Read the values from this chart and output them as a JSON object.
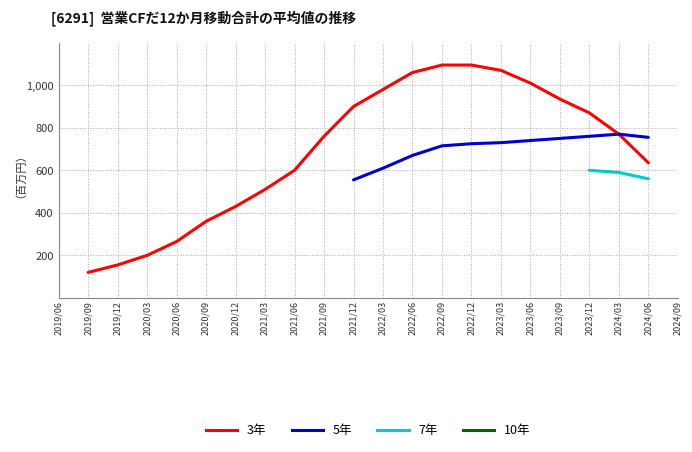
{
  "title": "[6291]  営業CFだ12か月移動合計の平均値の推移",
  "ylabel": "（百万円）",
  "background_color": "#ffffff",
  "plot_bg_color": "#ffffff",
  "grid_color": "#aaaaaa",
  "series": {
    "3年": {
      "color": "#ff0000",
      "dates": [
        "2019/09",
        "2019/12",
        "2020/03",
        "2020/06",
        "2020/09",
        "2020/12",
        "2021/03",
        "2021/06",
        "2021/09",
        "2021/12",
        "2022/03",
        "2022/06",
        "2022/09",
        "2022/12",
        "2023/03",
        "2023/06",
        "2023/09",
        "2023/12",
        "2024/03",
        "2024/06"
      ],
      "values": [
        120,
        155,
        200,
        265,
        360,
        430,
        510,
        600,
        760,
        900,
        980,
        1060,
        1095,
        1095,
        1070,
        1010,
        935,
        870,
        770,
        635
      ]
    },
    "5年": {
      "color": "#0000cc",
      "dates": [
        "2021/12",
        "2022/03",
        "2022/06",
        "2022/09",
        "2022/12",
        "2023/03",
        "2023/06",
        "2023/09",
        "2023/12",
        "2024/03",
        "2024/06"
      ],
      "values": [
        555,
        610,
        670,
        715,
        725,
        730,
        740,
        750,
        760,
        770,
        755
      ]
    },
    "7年": {
      "color": "#00cccc",
      "dates": [
        "2023/12",
        "2024/03",
        "2024/06"
      ],
      "values": [
        600,
        590,
        560
      ]
    },
    "10年": {
      "color": "#006600",
      "dates": [],
      "values": []
    }
  },
  "x_ticks": [
    "2019/06",
    "2019/09",
    "2019/12",
    "2020/03",
    "2020/06",
    "2020/09",
    "2020/12",
    "2021/03",
    "2021/06",
    "2021/09",
    "2021/12",
    "2022/03",
    "2022/06",
    "2022/09",
    "2022/12",
    "2023/03",
    "2023/06",
    "2023/09",
    "2023/12",
    "2024/03",
    "2024/06",
    "2024/09"
  ],
  "ylim": [
    0,
    1200
  ],
  "yticks": [
    200,
    400,
    600,
    800,
    1000
  ],
  "legend_labels": [
    "3年",
    "5年",
    "7年",
    "10年"
  ],
  "legend_colors": [
    "#ff0000",
    "#0000cc",
    "#00cccc",
    "#006600"
  ]
}
